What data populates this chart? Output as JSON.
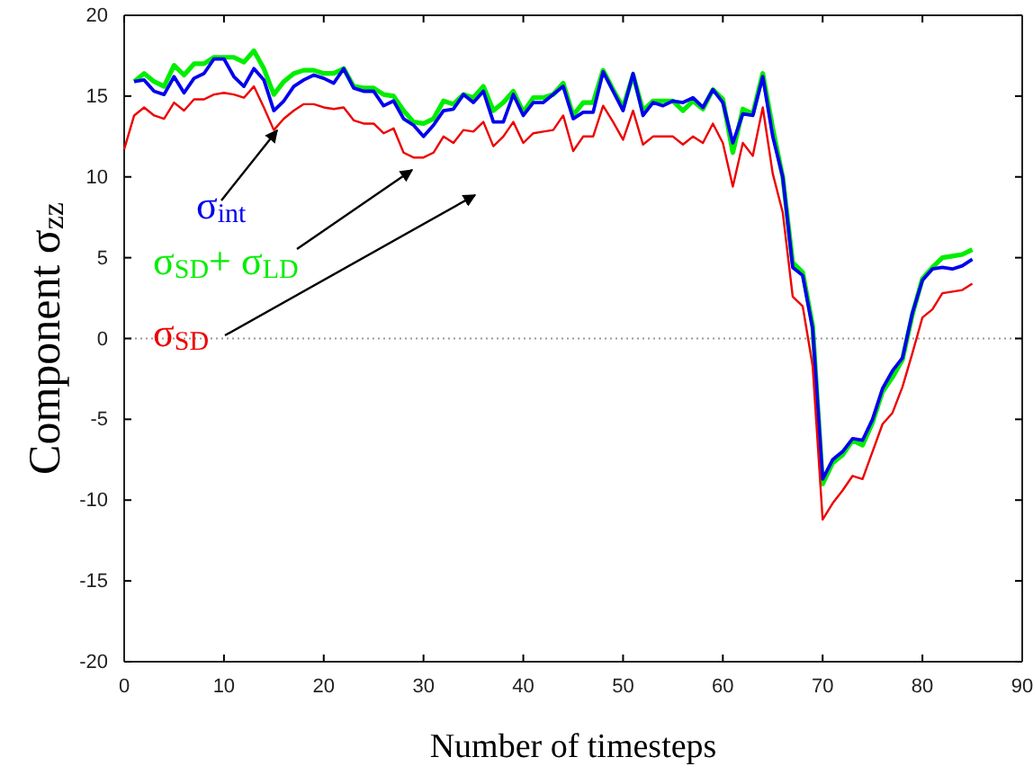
{
  "chart_data": {
    "type": "line",
    "xlabel": "Number of timesteps",
    "ylabel": "Component σ$_{zz}$",
    "x": [
      0,
      1,
      2,
      3,
      4,
      5,
      6,
      7,
      8,
      9,
      10,
      11,
      12,
      13,
      14,
      15,
      16,
      17,
      18,
      19,
      20,
      21,
      22,
      23,
      24,
      25,
      26,
      27,
      28,
      29,
      30,
      31,
      32,
      33,
      34,
      35,
      36,
      37,
      38,
      39,
      40,
      41,
      42,
      43,
      44,
      45,
      46,
      47,
      48,
      49,
      50,
      51,
      52,
      53,
      54,
      55,
      56,
      57,
      58,
      59,
      60,
      61,
      62,
      63,
      64,
      65,
      66,
      67,
      68,
      69,
      70,
      71,
      72,
      73,
      74,
      75,
      76,
      77,
      78,
      79,
      80,
      81,
      82,
      83,
      84,
      85
    ],
    "series": [
      {
        "name": "σ$_{SD}$+ σ$_{LD}$",
        "color": "#00ee00",
        "values": [
          null,
          15.9,
          16.4,
          15.9,
          15.6,
          16.9,
          16.3,
          17.0,
          17.0,
          17.4,
          17.4,
          17.4,
          17.1,
          17.8,
          16.7,
          15.1,
          15.9,
          16.4,
          16.6,
          16.6,
          16.4,
          16.4,
          16.7,
          15.6,
          15.5,
          15.5,
          15.1,
          15.0,
          14.1,
          13.4,
          13.3,
          13.6,
          14.7,
          14.5,
          15.1,
          14.9,
          15.6,
          14.1,
          14.6,
          15.3,
          14.0,
          14.9,
          14.9,
          15.1,
          15.8,
          13.8,
          14.6,
          14.6,
          16.6,
          15.4,
          14.3,
          16.3,
          14.1,
          14.7,
          14.7,
          14.7,
          14.1,
          14.7,
          14.2,
          15.4,
          14.8,
          11.5,
          14.2,
          13.9,
          16.4,
          13.0,
          10.0,
          4.7,
          4.1,
          0.8,
          -9.0,
          -7.7,
          -7.2,
          -6.3,
          -6.6,
          -5.2,
          -3.3,
          -2.4,
          -1.3,
          1.5,
          3.7,
          4.4,
          5.0,
          5.1,
          5.2,
          5.5
        ]
      },
      {
        "name": "σ$_{int}$",
        "color": "#0000ee",
        "values": [
          null,
          15.9,
          16.0,
          15.3,
          15.1,
          16.2,
          15.2,
          16.1,
          16.4,
          17.3,
          17.3,
          16.2,
          15.6,
          16.7,
          16.0,
          14.1,
          14.7,
          15.6,
          16.0,
          16.3,
          16.1,
          15.8,
          16.7,
          15.5,
          15.3,
          15.3,
          14.4,
          14.7,
          13.6,
          13.2,
          12.5,
          13.2,
          14.1,
          14.2,
          15.1,
          14.6,
          15.3,
          13.4,
          13.4,
          15.1,
          13.8,
          14.6,
          14.6,
          15.1,
          15.6,
          13.6,
          14.0,
          14.0,
          16.5,
          15.3,
          14.1,
          16.4,
          13.8,
          14.6,
          14.4,
          14.7,
          14.6,
          14.9,
          14.3,
          15.4,
          14.6,
          12.1,
          13.9,
          13.8,
          16.2,
          12.5,
          10.0,
          4.4,
          3.9,
          0.6,
          -8.7,
          -7.5,
          -7.0,
          -6.2,
          -6.3,
          -5.0,
          -3.1,
          -2.0,
          -1.2,
          1.6,
          3.6,
          4.3,
          4.4,
          4.3,
          4.5,
          4.9
        ]
      },
      {
        "name": "σ$_{SD}$",
        "color": "#ee0000",
        "values": [
          11.7,
          13.8,
          14.3,
          13.8,
          13.6,
          14.6,
          14.1,
          14.8,
          14.8,
          15.1,
          15.2,
          15.1,
          14.9,
          15.6,
          14.3,
          12.9,
          13.6,
          14.1,
          14.5,
          14.5,
          14.3,
          14.2,
          14.3,
          13.5,
          13.3,
          13.3,
          12.7,
          13.0,
          11.5,
          11.2,
          11.2,
          11.5,
          12.5,
          12.1,
          12.9,
          12.8,
          13.4,
          11.9,
          12.5,
          13.4,
          12.1,
          12.7,
          12.8,
          12.9,
          13.8,
          11.6,
          12.5,
          12.5,
          14.4,
          13.4,
          12.3,
          14.1,
          12.0,
          12.5,
          12.5,
          12.5,
          12.0,
          12.5,
          12.1,
          13.3,
          12.1,
          9.4,
          12.1,
          11.3,
          14.3,
          10.2,
          7.8,
          2.6,
          2.0,
          -1.7,
          -11.2,
          -10.2,
          -9.4,
          -8.5,
          -8.7,
          -7.0,
          -5.3,
          -4.6,
          -3.0,
          -0.9,
          1.3,
          1.8,
          2.8,
          2.9,
          3.0,
          3.4
        ]
      }
    ],
    "xlim": [
      0,
      90
    ],
    "xticks": [
      0,
      10,
      20,
      30,
      40,
      50,
      60,
      70,
      80,
      90
    ],
    "ylim": [
      -20,
      20
    ],
    "yticks": [
      -20,
      -15,
      -10,
      -5,
      0,
      5,
      10,
      15,
      20
    ],
    "ref_lines": [
      {
        "axis": "y",
        "value": 0,
        "color": "#999999",
        "line_style": "dotted"
      }
    ],
    "grid": false,
    "legend": false,
    "marker": "none",
    "line_style": "solid"
  }
}
